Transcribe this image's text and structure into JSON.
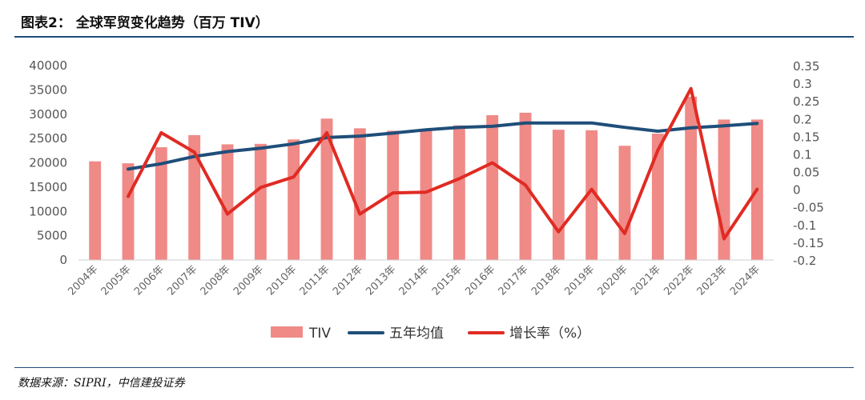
{
  "header": {
    "title": "图表2： 全球军贸变化趋势（百万 TIV）"
  },
  "footer": {
    "source": "数据来源：SIPRI，中信建投证券"
  },
  "colors": {
    "bar": "#ef8a87",
    "avg_line": "#1f4e79",
    "growth_line": "#e02b23",
    "rule": "#1f4e79"
  },
  "chart_data": {
    "type": "bar",
    "title": "",
    "categories": [
      "2004年",
      "2005年",
      "2006年",
      "2007年",
      "2008年",
      "2009年",
      "2010年",
      "2011年",
      "2012年",
      "2013年",
      "2014年",
      "2015年",
      "2016年",
      "2017年",
      "2018年",
      "2019年",
      "2020年",
      "2021年",
      "2022年",
      "2023年",
      "2024年"
    ],
    "y_left": {
      "min": 0,
      "max": 40000,
      "ticks": [
        0,
        5000,
        10000,
        15000,
        20000,
        25000,
        30000,
        35000,
        40000
      ]
    },
    "y_right": {
      "min": -0.2,
      "max": 0.35,
      "ticks": [
        "-0.2",
        "-0.15",
        "-0.1",
        "-0.05",
        "0",
        "0.05",
        "0.1",
        "0.15",
        "0.2",
        "0.25",
        "0.3",
        "0.35"
      ]
    },
    "series": [
      {
        "name": "TIV",
        "type": "bar",
        "axis": "left",
        "values": [
          20300,
          19900,
          23200,
          25700,
          23800,
          23900,
          24800,
          29100,
          27100,
          26600,
          26700,
          27700,
          29800,
          30300,
          26800,
          26700,
          23500,
          26000,
          33600,
          28900,
          28900
        ]
      },
      {
        "name": "五年均值",
        "type": "line",
        "axis": "left",
        "values": [
          null,
          18700,
          19800,
          21300,
          22300,
          23000,
          23900,
          25200,
          25500,
          26100,
          26800,
          27300,
          27500,
          28200,
          28200,
          28200,
          27300,
          26500,
          27200,
          27600,
          28100
        ]
      },
      {
        "name": "增长率（%）",
        "type": "line",
        "axis": "right",
        "values": [
          null,
          -0.02,
          0.16,
          0.105,
          -0.07,
          0.005,
          0.035,
          0.16,
          -0.07,
          -0.01,
          -0.008,
          0.03,
          0.075,
          0.012,
          -0.12,
          0.0,
          -0.125,
          0.11,
          0.285,
          -0.14,
          0.0
        ]
      }
    ],
    "legend": {
      "position": "bottom",
      "entries": [
        "TIV",
        "五年均值",
        "增长率（%）"
      ]
    },
    "grid": false
  }
}
